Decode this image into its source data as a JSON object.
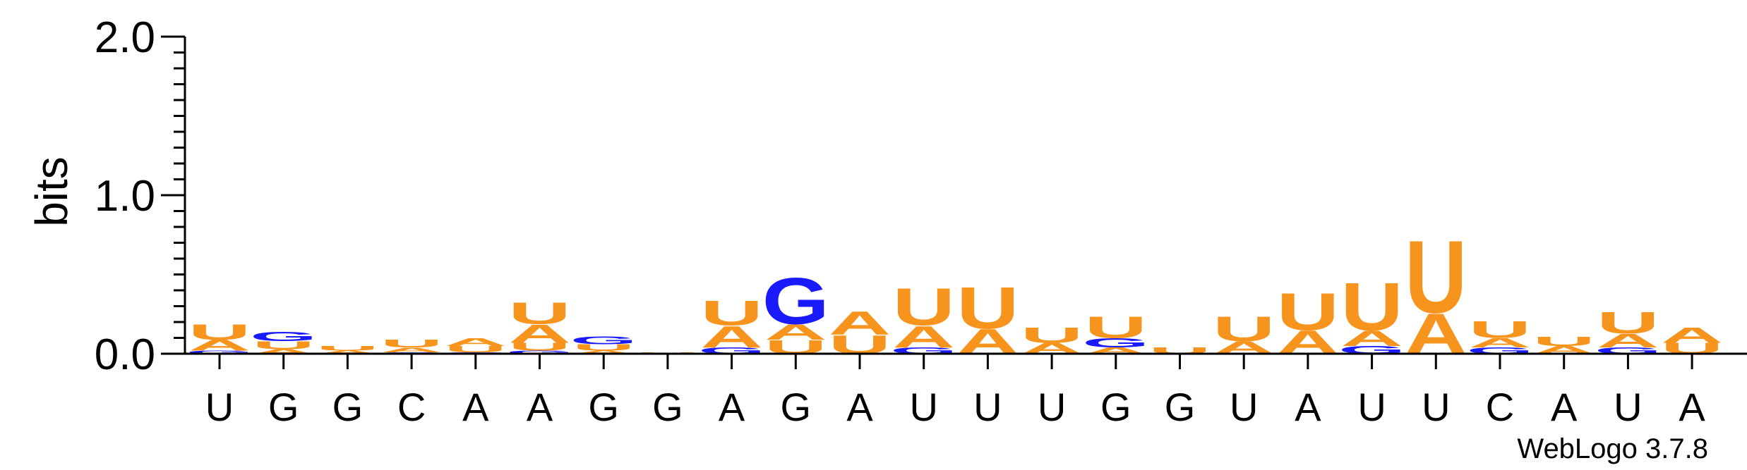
{
  "chart_data": {
    "type": "sequence-logo",
    "ylabel": "bits",
    "ylim": [
      0,
      2.0
    ],
    "yticks": [
      "0.0",
      "1.0",
      "2.0"
    ],
    "credit": "WebLogo 3.7.8",
    "colors": {
      "A": "#f7941d",
      "U": "#f7941d",
      "G": "#1a1aff",
      "C": "#1a1aff"
    },
    "positions": [
      {
        "label": "U",
        "stack": [
          [
            "G",
            0.02
          ],
          [
            "A",
            0.07
          ],
          [
            "U",
            0.1
          ]
        ]
      },
      {
        "label": "G",
        "stack": [
          [
            "A",
            0.03
          ],
          [
            "U",
            0.05
          ],
          [
            "G",
            0.06
          ]
        ]
      },
      {
        "label": "G",
        "stack": [
          [
            "A",
            0.02
          ],
          [
            "U",
            0.03
          ]
        ]
      },
      {
        "label": "C",
        "stack": [
          [
            "G",
            0.01
          ],
          [
            "A",
            0.03
          ],
          [
            "U",
            0.05
          ]
        ]
      },
      {
        "label": "A",
        "stack": [
          [
            "G",
            0.01
          ],
          [
            "U",
            0.04
          ],
          [
            "A",
            0.05
          ]
        ]
      },
      {
        "label": "A",
        "stack": [
          [
            "G",
            0.02
          ],
          [
            "U",
            0.05
          ],
          [
            "A",
            0.12
          ],
          [
            "U",
            0.14
          ]
        ]
      },
      {
        "label": "G",
        "stack": [
          [
            "A",
            0.02
          ],
          [
            "U",
            0.04
          ],
          [
            "G",
            0.05
          ]
        ]
      },
      {
        "label": "G",
        "stack": [
          [
            "U",
            0.01
          ]
        ]
      },
      {
        "label": "A",
        "stack": [
          [
            "G",
            0.04
          ],
          [
            "A",
            0.14
          ],
          [
            "U",
            0.16
          ]
        ]
      },
      {
        "label": "G",
        "stack": [
          [
            "U",
            0.09
          ],
          [
            "A",
            0.1
          ],
          [
            "G",
            0.3
          ]
        ]
      },
      {
        "label": "A",
        "stack": [
          [
            "U",
            0.12
          ],
          [
            "A",
            0.15
          ]
        ]
      },
      {
        "label": "U",
        "stack": [
          [
            "G",
            0.04
          ],
          [
            "A",
            0.14
          ],
          [
            "U",
            0.24
          ]
        ]
      },
      {
        "label": "U",
        "stack": [
          [
            "A",
            0.16
          ],
          [
            "U",
            0.27
          ]
        ]
      },
      {
        "label": "U",
        "stack": [
          [
            "A",
            0.07
          ],
          [
            "U",
            0.1
          ]
        ]
      },
      {
        "label": "G",
        "stack": [
          [
            "A",
            0.04
          ],
          [
            "G",
            0.06
          ],
          [
            "U",
            0.14
          ]
        ]
      },
      {
        "label": "G",
        "stack": [
          [
            "U",
            0.04
          ]
        ]
      },
      {
        "label": "U",
        "stack": [
          [
            "A",
            0.08
          ],
          [
            "U",
            0.16
          ]
        ]
      },
      {
        "label": "A",
        "stack": [
          [
            "A",
            0.15
          ],
          [
            "U",
            0.24
          ]
        ]
      },
      {
        "label": "U",
        "stack": [
          [
            "G",
            0.05
          ],
          [
            "A",
            0.1
          ],
          [
            "U",
            0.31
          ]
        ]
      },
      {
        "label": "U",
        "stack": [
          [
            "A",
            0.26
          ],
          [
            "U",
            0.47
          ]
        ]
      },
      {
        "label": "C",
        "stack": [
          [
            "G",
            0.04
          ],
          [
            "A",
            0.06
          ],
          [
            "U",
            0.11
          ]
        ]
      },
      {
        "label": "A",
        "stack": [
          [
            "A",
            0.05
          ],
          [
            "U",
            0.06
          ]
        ]
      },
      {
        "label": "U",
        "stack": [
          [
            "G",
            0.04
          ],
          [
            "A",
            0.09
          ],
          [
            "U",
            0.14
          ]
        ]
      },
      {
        "label": "A",
        "stack": [
          [
            "U",
            0.07
          ],
          [
            "A",
            0.1
          ]
        ]
      }
    ]
  }
}
